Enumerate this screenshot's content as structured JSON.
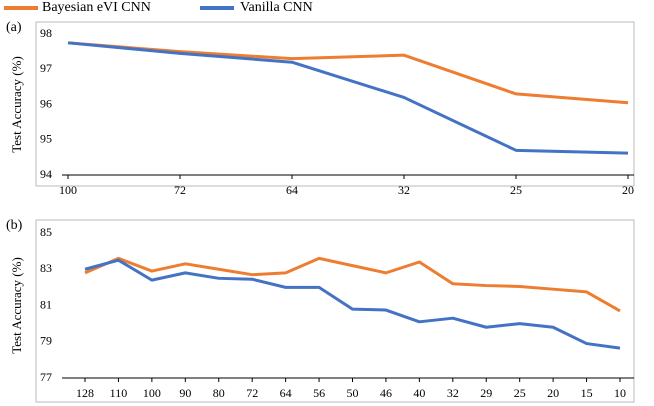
{
  "chart_data": [
    {
      "type": "line",
      "label": "(a)",
      "ylabel": "Test Accuracy (%)",
      "categories": [
        "100",
        "72",
        "64",
        "32",
        "25",
        "20"
      ],
      "series": [
        {
          "name": "Bayesian eVI CNN",
          "color": "#ed7d31",
          "values": [
            97.75,
            97.5,
            97.3,
            97.4,
            96.3,
            96.05
          ]
        },
        {
          "name": "Vanilla CNN",
          "color": "#4472c4",
          "values": [
            97.75,
            97.45,
            97.2,
            96.2,
            94.7,
            94.62
          ]
        }
      ],
      "ylim": [
        94,
        98
      ],
      "yticks": [
        94,
        95,
        96,
        97,
        98
      ]
    },
    {
      "type": "line",
      "label": "(b)",
      "ylabel": "Test Accuracy (%)",
      "categories": [
        "128",
        "110",
        "100",
        "90",
        "80",
        "72",
        "64",
        "56",
        "50",
        "46",
        "40",
        "32",
        "29",
        "25",
        "20",
        "15",
        "10"
      ],
      "series": [
        {
          "name": "Bayesian eVI CNN",
          "color": "#ed7d31",
          "values": [
            82.8,
            83.6,
            82.9,
            83.3,
            83.0,
            82.7,
            82.8,
            83.6,
            83.2,
            82.8,
            83.4,
            82.2,
            82.1,
            82.05,
            81.9,
            81.75,
            80.7
          ]
        },
        {
          "name": "Vanilla CNN",
          "color": "#4472c4",
          "values": [
            83.0,
            83.5,
            82.4,
            82.8,
            82.5,
            82.45,
            82.0,
            82.0,
            80.8,
            80.75,
            80.1,
            80.3,
            79.8,
            80.0,
            79.8,
            78.9,
            78.65
          ]
        }
      ],
      "ylim": [
        77,
        85
      ],
      "yticks": [
        77,
        79,
        81,
        83,
        85
      ]
    }
  ]
}
